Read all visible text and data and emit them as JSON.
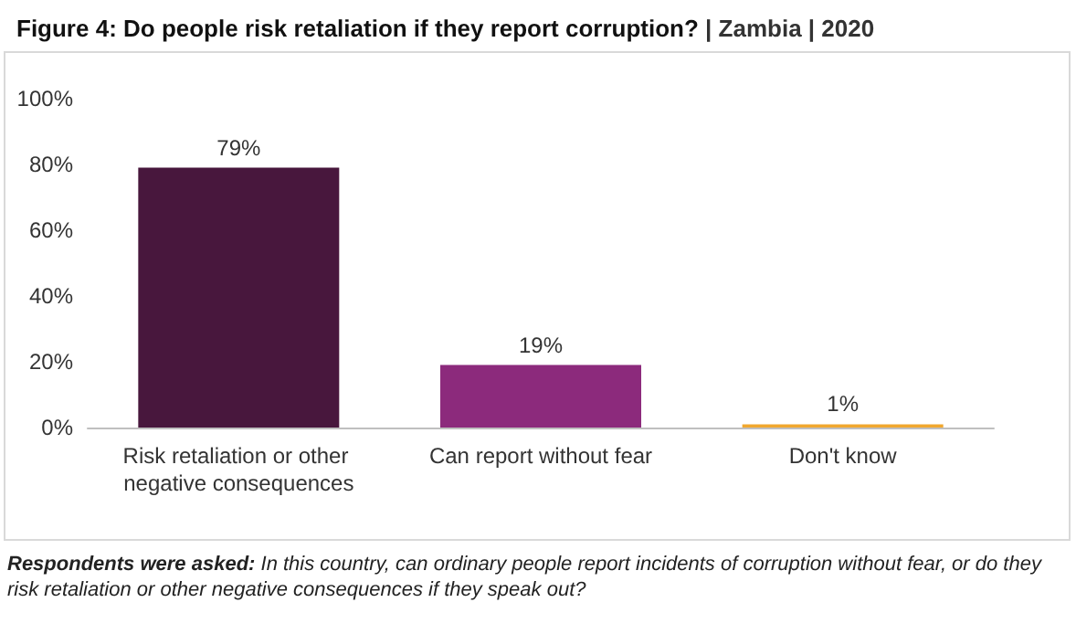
{
  "chart_data": {
    "type": "bar",
    "title": "Figure 4: Do people risk retaliation if they report corruption? | Zambia | 2020",
    "categories": [
      "Risk retaliation or other negative consequences",
      "Can report without fear",
      "Don't know"
    ],
    "values": [
      79,
      19,
      1
    ],
    "colors": [
      "#48173d",
      "#8c2a7c",
      "#f0a72e"
    ],
    "value_labels": [
      "79%",
      "19%",
      "1%"
    ],
    "ylim": [
      0,
      100
    ],
    "yticks": [
      {
        "value": 0,
        "label": "0%"
      },
      {
        "value": 20,
        "label": "20%"
      },
      {
        "value": 40,
        "label": "40%"
      },
      {
        "value": 60,
        "label": "60%"
      },
      {
        "value": 80,
        "label": "80%"
      },
      {
        "value": 100,
        "label": "100%"
      }
    ],
    "grid": false,
    "annotations": [
      "Respondents were asked: In this country, can ordinary people report incidents of corruption without fear, or do they risk retaliation or other negative consequences if they speak out?"
    ]
  }
}
